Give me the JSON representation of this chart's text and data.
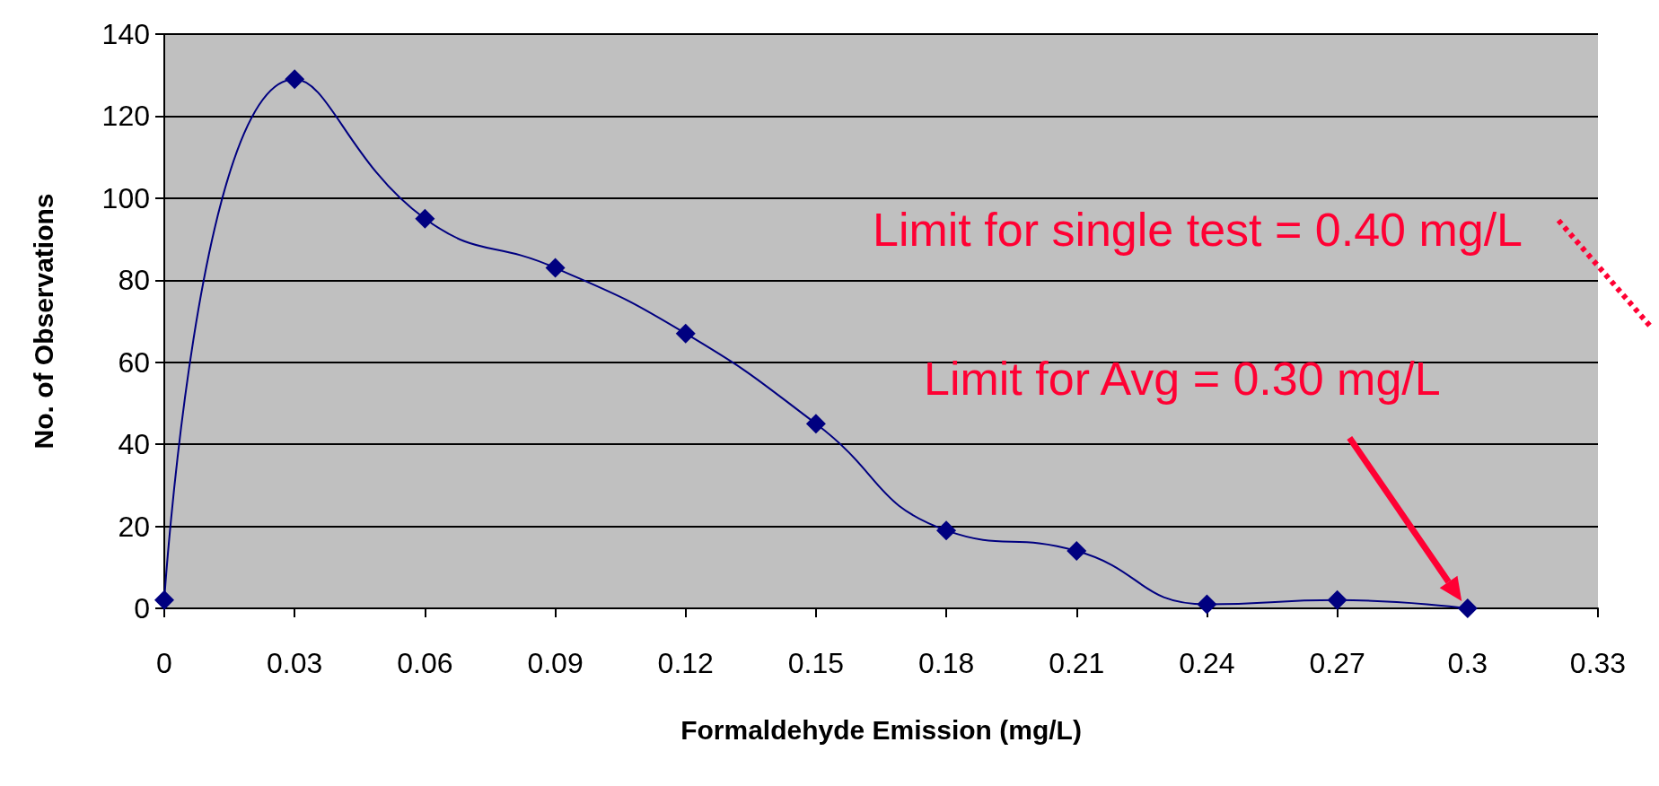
{
  "chart_data": {
    "type": "line",
    "xlabel": "Formaldehyde Emission (mg/L)",
    "ylabel": "No. of Observations",
    "x": [
      0,
      0.03,
      0.06,
      0.09,
      0.12,
      0.15,
      0.18,
      0.21,
      0.24,
      0.27,
      0.3
    ],
    "series": [
      {
        "color": "#000080",
        "values": [
          2,
          129,
          95,
          83,
          67,
          45,
          19,
          14,
          1,
          2,
          0
        ]
      }
    ],
    "xlim": [
      0,
      0.33
    ],
    "xticks": [
      0,
      0.03,
      0.06,
      0.09,
      0.12,
      0.15,
      0.18,
      0.21,
      0.24,
      0.27,
      0.3,
      0.33
    ],
    "ylim": [
      0,
      140
    ],
    "yticks": [
      0,
      20,
      40,
      60,
      80,
      100,
      120,
      140
    ],
    "grid": "y",
    "marker": "diamond",
    "line_style": "solid",
    "annotations": [
      "Limit for single test = 0.40 mg/L",
      "Limit for Avg = 0.30 mg/L"
    ]
  }
}
